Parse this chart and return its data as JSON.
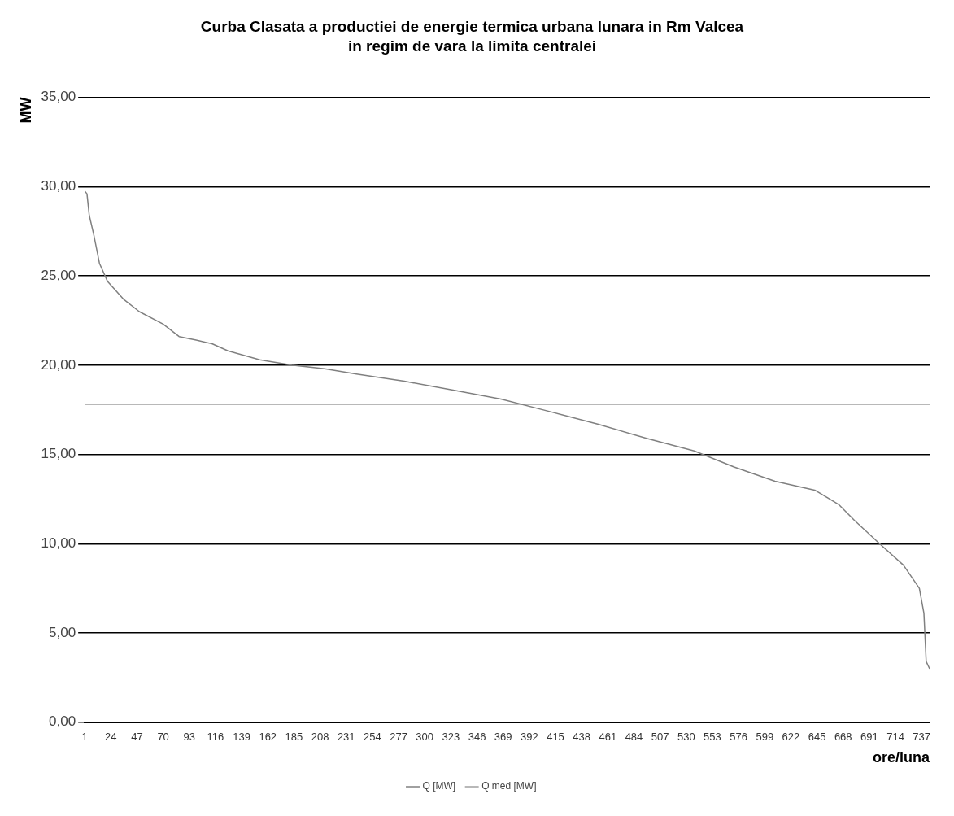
{
  "chart_data": {
    "type": "line",
    "title": "Curba Clasata a productiei de energie termica urbana lunara in Rm Valcea",
    "subtitle": "in regim de vara la limita centralei",
    "xlabel": "ore/luna",
    "ylabel": "MW",
    "series": [
      {
        "name": "Q [MW]",
        "color": "#808080",
        "x": [
          1,
          3,
          5,
          9,
          14,
          21,
          35,
          49,
          70,
          84,
          99,
          113,
          127,
          155,
          183,
          212,
          240,
          282,
          325,
          367,
          410,
          452,
          495,
          537,
          572,
          608,
          643,
          664,
          678,
          700,
          721,
          735,
          739,
          741,
          744
        ],
        "values": [
          29.75,
          29.6,
          28.4,
          27.3,
          25.7,
          24.7,
          23.7,
          23.0,
          22.3,
          21.6,
          21.4,
          21.2,
          20.8,
          20.3,
          20.0,
          19.8,
          19.5,
          19.1,
          18.6,
          18.1,
          17.4,
          16.7,
          15.9,
          15.2,
          14.3,
          13.5,
          13.0,
          12.2,
          11.3,
          10.0,
          8.8,
          7.5,
          6.1,
          3.4,
          3.0
        ]
      },
      {
        "name": "Q med [MW]",
        "color": "#a0a0a0",
        "x": [
          1,
          744
        ],
        "values": [
          17.8,
          17.8
        ]
      }
    ],
    "xlim": [
      1,
      744
    ],
    "xticks": [
      1,
      24,
      47,
      70,
      93,
      116,
      139,
      162,
      185,
      208,
      231,
      254,
      277,
      300,
      323,
      346,
      369,
      392,
      415,
      438,
      461,
      484,
      507,
      530,
      553,
      576,
      599,
      622,
      645,
      668,
      691,
      714,
      737
    ],
    "ylim": [
      0,
      35
    ],
    "yticks": [
      {
        "value": 0,
        "label": "0,00"
      },
      {
        "value": 5,
        "label": "5,00"
      },
      {
        "value": 10,
        "label": "10,00"
      },
      {
        "value": 15,
        "label": "15,00"
      },
      {
        "value": 20,
        "label": "20,00"
      },
      {
        "value": 25,
        "label": "25,00"
      },
      {
        "value": 30,
        "label": "30,00"
      },
      {
        "value": 35,
        "label": "35,00"
      }
    ],
    "grid": "y",
    "legend": "bottom",
    "marker": "none",
    "line_style": "solid"
  }
}
